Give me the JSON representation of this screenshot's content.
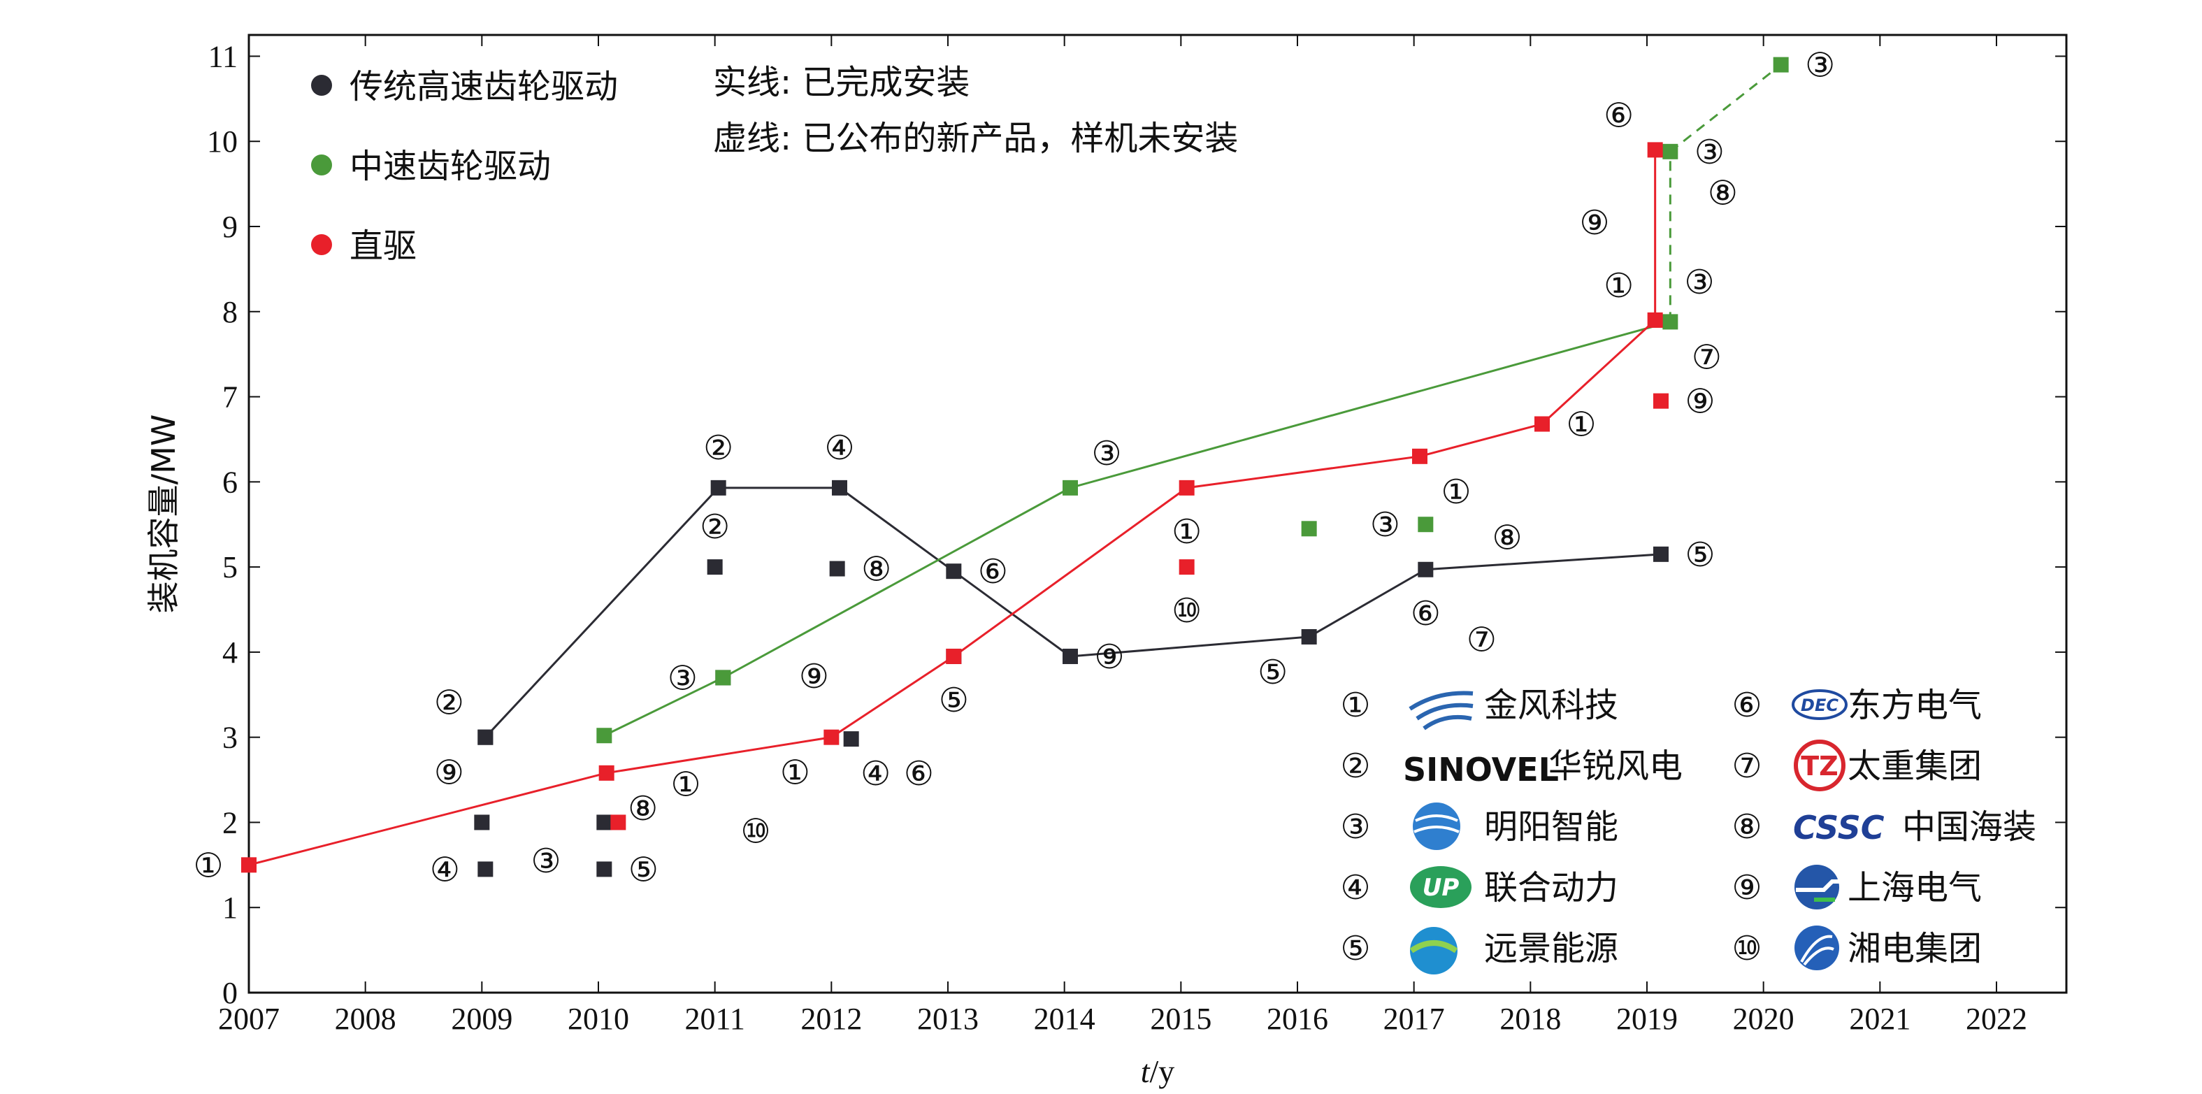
{
  "chart_data": {
    "type": "line",
    "xlabel_italic": "t",
    "xlabel_unit": "/y",
    "ylabel": "装机容量/MW",
    "xlim": [
      2007,
      2022.6
    ],
    "ylim": [
      0,
      11.25
    ],
    "x_ticks": [
      "2007",
      "2008",
      "2009",
      "2010",
      "2011",
      "2012",
      "2013",
      "2014",
      "2015",
      "2016",
      "2017",
      "2018",
      "2019",
      "2020",
      "2021",
      "2022"
    ],
    "y_ticks": [
      "0",
      "1",
      "2",
      "3",
      "4",
      "5",
      "6",
      "7",
      "8",
      "9",
      "10",
      "11"
    ],
    "colors": {
      "high_speed": "#2b2b33",
      "medium_speed": "#4a9a3a",
      "direct": "#e8202a"
    },
    "legend_series": [
      {
        "key": "high_speed",
        "label": "传统高速齿轮驱动",
        "color": "#2b2b33"
      },
      {
        "key": "medium_speed",
        "label": "中速齿轮驱动",
        "color": "#4a9a3a"
      },
      {
        "key": "direct",
        "label": "直驱",
        "color": "#e8202a"
      }
    ],
    "line_notes": [
      "实线: 已完成安装",
      "虚线: 已公布的新产品，样机未安装"
    ],
    "series": [
      {
        "key": "high_speed",
        "style": "solid",
        "x": [
          2009.03,
          2011.03,
          2012.07,
          2013.05,
          2014.05,
          2016.1,
          2017.1,
          2019.12
        ],
        "y": [
          3.0,
          5.93,
          5.93,
          4.95,
          3.95,
          4.18,
          4.97,
          5.15
        ]
      },
      {
        "key": "medium_speed",
        "style": "solid",
        "x": [
          2010.05,
          2011.07,
          2014.05,
          2019.2
        ],
        "y": [
          3.02,
          3.7,
          5.93,
          7.88
        ]
      },
      {
        "key": "medium_speed",
        "style": "dashed",
        "x": [
          2019.2,
          2019.2
        ],
        "y": [
          7.88,
          9.88
        ]
      },
      {
        "key": "medium_speed",
        "style": "dashed",
        "x": [
          2019.2,
          2020.15
        ],
        "y": [
          9.88,
          10.9
        ]
      },
      {
        "key": "direct",
        "style": "solid",
        "x": [
          2007.0,
          2010.07,
          2012.0,
          2013.05,
          2015.05,
          2017.05,
          2018.1,
          2019.07,
          2019.07
        ],
        "y": [
          1.5,
          2.58,
          3.0,
          3.95,
          5.93,
          6.3,
          6.68,
          7.9,
          9.9
        ]
      }
    ],
    "points": [
      {
        "key": "high_speed",
        "x": 2009.03,
        "y": 3.0,
        "marker": "②",
        "pos": "nw"
      },
      {
        "key": "high_speed",
        "x": 2009.03,
        "y": 3.0,
        "marker": "⑨",
        "pos": "sw"
      },
      {
        "key": "high_speed",
        "x": 2009.0,
        "y": 2.0,
        "marker": "",
        "pos": ""
      },
      {
        "key": "high_speed",
        "x": 2009.03,
        "y": 1.45,
        "marker": "④",
        "pos": "w"
      },
      {
        "key": "high_speed",
        "x": 2010.05,
        "y": 2.0,
        "marker": "",
        "pos": ""
      },
      {
        "key": "high_speed",
        "x": 2010.05,
        "y": 1.45,
        "marker": "⑤",
        "pos": "e"
      },
      {
        "key": "high_speed",
        "x": 2011.03,
        "y": 5.93,
        "marker": "②",
        "pos": "n"
      },
      {
        "key": "high_speed",
        "x": 2011.0,
        "y": 5.0,
        "marker": "②",
        "pos": "n"
      },
      {
        "key": "high_speed",
        "x": 2011.07,
        "y": 3.7,
        "marker": "",
        "pos": ""
      },
      {
        "key": "high_speed",
        "x": 2012.07,
        "y": 5.93,
        "marker": "④",
        "pos": "n"
      },
      {
        "key": "high_speed",
        "x": 2012.05,
        "y": 4.98,
        "marker": "⑧",
        "pos": "e"
      },
      {
        "key": "high_speed",
        "x": 2012.17,
        "y": 2.98,
        "marker": "",
        "pos": ""
      },
      {
        "key": "high_speed",
        "x": 2013.05,
        "y": 4.95,
        "marker": "⑥",
        "pos": "e"
      },
      {
        "key": "high_speed",
        "x": 2013.05,
        "y": 3.95,
        "marker": "⑤",
        "pos": "s"
      },
      {
        "key": "high_speed",
        "x": 2014.05,
        "y": 3.95,
        "marker": "⑨",
        "pos": "e"
      },
      {
        "key": "high_speed",
        "x": 2016.1,
        "y": 4.18,
        "marker": "⑤",
        "pos": "sw"
      },
      {
        "key": "high_speed",
        "x": 2017.1,
        "y": 4.97,
        "marker": "⑥",
        "pos": "s"
      },
      {
        "key": "high_speed",
        "x": 2019.12,
        "y": 5.15,
        "marker": "⑤",
        "pos": "e"
      },
      {
        "key": "medium_speed",
        "x": 2010.05,
        "y": 3.02,
        "marker": "",
        "pos": ""
      },
      {
        "key": "medium_speed",
        "x": 2011.07,
        "y": 3.7,
        "marker": "③",
        "pos": "w"
      },
      {
        "key": "medium_speed",
        "x": 2014.05,
        "y": 5.93,
        "marker": "③",
        "pos": "ne"
      },
      {
        "key": "medium_speed",
        "x": 2016.1,
        "y": 5.45,
        "marker": "",
        "pos": ""
      },
      {
        "key": "medium_speed",
        "x": 2017.1,
        "y": 5.5,
        "marker": "③",
        "pos": "w"
      },
      {
        "key": "medium_speed",
        "x": 2019.2,
        "y": 7.88,
        "marker": "⑦",
        "pos": "se"
      },
      {
        "key": "medium_speed",
        "x": 2019.2,
        "y": 9.88,
        "marker": "③",
        "pos": "e"
      },
      {
        "key": "medium_speed",
        "x": 2020.15,
        "y": 10.9,
        "marker": "③",
        "pos": "e"
      },
      {
        "key": "direct",
        "x": 2007.0,
        "y": 1.5,
        "marker": "①",
        "pos": "w"
      },
      {
        "key": "direct",
        "x": 2010.07,
        "y": 2.58,
        "marker": "⑧",
        "pos": "se"
      },
      {
        "key": "direct",
        "x": 2010.17,
        "y": 2.0,
        "marker": "",
        "pos": ""
      },
      {
        "key": "direct",
        "x": 2012.0,
        "y": 3.0,
        "marker": "①",
        "pos": "sw"
      },
      {
        "key": "direct",
        "x": 2013.05,
        "y": 3.95,
        "marker": "",
        "pos": ""
      },
      {
        "key": "direct",
        "x": 2015.05,
        "y": 5.93,
        "marker": "①",
        "pos": "s"
      },
      {
        "key": "direct",
        "x": 2015.05,
        "y": 5.0,
        "marker": "⑩",
        "pos": "s"
      },
      {
        "key": "direct",
        "x": 2017.05,
        "y": 6.3,
        "marker": "①",
        "pos": "se"
      },
      {
        "key": "direct",
        "x": 2018.1,
        "y": 6.68,
        "marker": "①",
        "pos": "e"
      },
      {
        "key": "direct",
        "x": 2019.07,
        "y": 7.9,
        "marker": "①",
        "pos": "nw"
      },
      {
        "key": "direct",
        "x": 2019.07,
        "y": 9.9,
        "marker": "⑥",
        "pos": "nw"
      },
      {
        "key": "direct",
        "x": 2019.12,
        "y": 6.95,
        "marker": "⑨",
        "pos": "e"
      }
    ],
    "free_labels": [
      {
        "text": "①",
        "x": 2010.75,
        "y": 2.45
      },
      {
        "text": "⑩",
        "x": 2011.35,
        "y": 1.9
      },
      {
        "text": "③",
        "x": 2009.55,
        "y": 1.55
      },
      {
        "text": "④",
        "x": 2012.38,
        "y": 2.58
      },
      {
        "text": "⑥",
        "x": 2012.75,
        "y": 2.58
      },
      {
        "text": "⑨",
        "x": 2011.85,
        "y": 3.72
      },
      {
        "text": "⑧",
        "x": 2017.8,
        "y": 5.35
      },
      {
        "text": "⑦",
        "x": 2017.58,
        "y": 4.15
      },
      {
        "text": "⑨",
        "x": 2018.55,
        "y": 9.05
      },
      {
        "text": "③",
        "x": 2019.45,
        "y": 8.35
      },
      {
        "text": "⑧",
        "x": 2019.65,
        "y": 9.4
      }
    ],
    "manufacturers": [
      {
        "num": "①",
        "logo": "SWIRL",
        "name": "金风科技",
        "col": 0,
        "row": 0
      },
      {
        "num": "②",
        "logo": "SINOVEL",
        "name": "华锐风电",
        "col": 0,
        "row": 1
      },
      {
        "num": "③",
        "logo": "GLOBE",
        "name": "明阳智能",
        "col": 0,
        "row": 2
      },
      {
        "num": "④",
        "logo": "UP",
        "name": "联合动力",
        "col": 0,
        "row": 3
      },
      {
        "num": "⑤",
        "logo": "WAVE",
        "name": "远景能源",
        "col": 0,
        "row": 4
      },
      {
        "num": "⑥",
        "logo": "DEC",
        "name": "东方电气",
        "col": 1,
        "row": 0
      },
      {
        "num": "⑦",
        "logo": "TZ",
        "name": "太重集团",
        "col": 1,
        "row": 1
      },
      {
        "num": "⑧",
        "logo": "CSSC",
        "name": "中国海装",
        "col": 1,
        "row": 2
      },
      {
        "num": "⑨",
        "logo": "SE",
        "name": "上海电气",
        "col": 1,
        "row": 3
      },
      {
        "num": "⑩",
        "logo": "XE",
        "name": "湘电集团",
        "col": 1,
        "row": 4
      }
    ]
  }
}
